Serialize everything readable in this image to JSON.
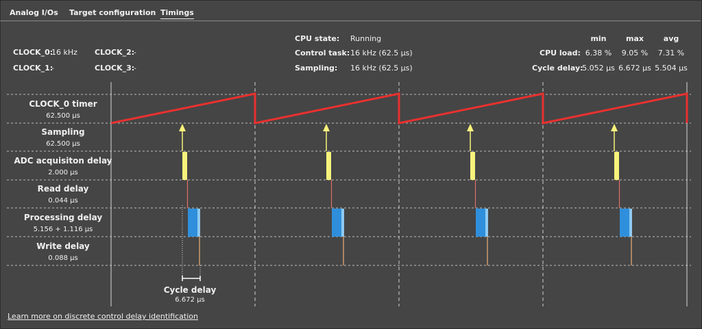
{
  "tabs": [
    {
      "label": "Analog I/Os",
      "active": false
    },
    {
      "label": "Target configuration",
      "active": false
    },
    {
      "label": "Timings",
      "active": true
    }
  ],
  "clocks": {
    "clock0_label": "CLOCK_0:",
    "clock0_value": "16 kHz",
    "clock1_label": "CLOCK_1:",
    "clock1_value": "-",
    "clock2_label": "CLOCK_2:",
    "clock2_value": "-",
    "clock3_label": "CLOCK_3:",
    "clock3_value": "-"
  },
  "status": {
    "cpu_state_label": "CPU state:",
    "cpu_state_value": "Running",
    "control_task_label": "Control task:",
    "control_task_value": "16 kHz (62.5 µs)",
    "sampling_label": "Sampling:",
    "sampling_value": "16 kHz (62.5 µs)"
  },
  "stats": {
    "headers": {
      "min": "min",
      "max": "max",
      "avg": "avg"
    },
    "cpu_load": {
      "label": "CPU load:",
      "min": "6.38 %",
      "max": "9.05 %",
      "avg": "7.31 %"
    },
    "cycle_delay": {
      "label": "Cycle delay:",
      "min": "5.052 µs",
      "max": "6.672 µs",
      "avg": "5.504 µs"
    }
  },
  "channels": [
    {
      "title": "CLOCK_0 timer",
      "value": "62.500 µs"
    },
    {
      "title": "Sampling",
      "value": "62.500 µs"
    },
    {
      "title": "ADC acquisiton delay",
      "value": "2.000 µs"
    },
    {
      "title": "Read delay",
      "value": "0.044 µs"
    },
    {
      "title": "Processing delay",
      "value": "5.156 + 1.116 µs"
    },
    {
      "title": "Write delay",
      "value": "0.088 µs"
    }
  ],
  "cycle_delay_marker": {
    "title": "Cycle delay",
    "value": "6.672 µs"
  },
  "timing_diagram": {
    "periods": 4,
    "colors": {
      "clock_ramp": "#e8312f",
      "sampling_arrow": "#f8f37c",
      "adc_bar": "#f8f37c",
      "read_line": "#e0706a",
      "processing_bar": "#2f8fdc",
      "processing_bar_extra": "#8fcaf2",
      "write_line": "#f0b27a"
    }
  },
  "footer": {
    "link_text": "Learn more on discrete control delay identification"
  }
}
